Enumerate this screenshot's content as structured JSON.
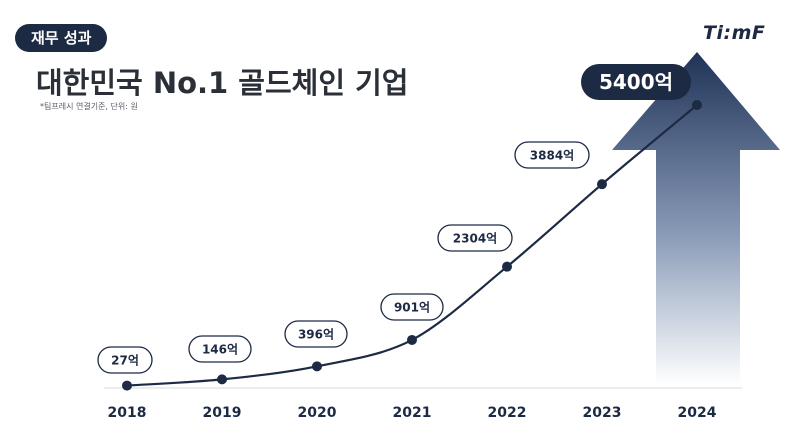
{
  "header": {
    "badge": "재무 성과",
    "logo": "Ti:mF",
    "title": "대한민국 No.1 골드체인 기업",
    "note": "*팀프레시 연결기준, 단위: 원"
  },
  "colors": {
    "navy": "#1c2a44",
    "arrow_top": "#1f3357",
    "arrow_bottom": "#ffffff"
  },
  "chart_data": {
    "type": "line",
    "x": [
      "2018",
      "2019",
      "2020",
      "2021",
      "2022",
      "2023",
      "2024"
    ],
    "series": [
      {
        "values": [
          27,
          146,
          396,
          901,
          2304,
          3884,
          5400
        ]
      }
    ],
    "data_labels": [
      "27억",
      "146억",
      "396억",
      "901억",
      "2304억",
      "3884억",
      "5400억"
    ],
    "ylim": [
      0,
      5400
    ],
    "xlabel": "",
    "ylabel": "",
    "grid": false,
    "legend": "none",
    "annotations": [
      "growth-arrow-behind-2024"
    ]
  }
}
